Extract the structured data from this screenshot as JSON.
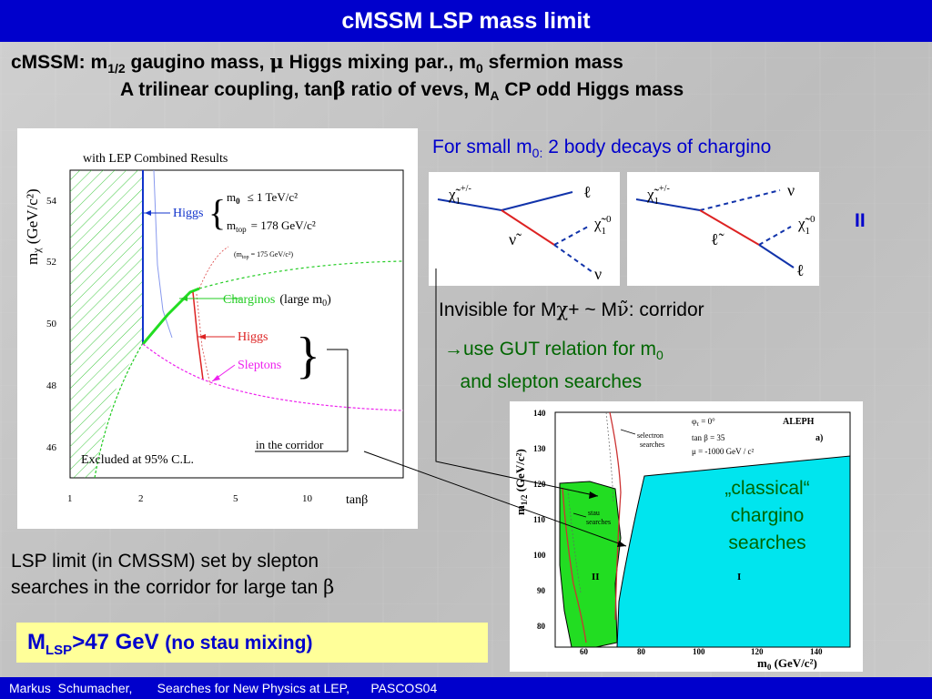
{
  "title": "cMSSM LSP mass limit",
  "definitions": {
    "line1_a": "cMSSM: m",
    "line1_sub": "1/2",
    "line1_b": " gaugino mass,  ",
    "line1_mu": "μ",
    "line1_c": " Higgs mixing par., m",
    "line1_sub0": "0",
    "line1_d": "  sfermion mass",
    "line2_a": "A trilinear coupling, tan",
    "line2_beta": "β",
    "line2_b": "  ratio of vevs, M",
    "line2_sub": "A",
    "line2_c": " CP odd Higgs mass"
  },
  "left_plot": {
    "header": "with LEP Combined Results",
    "ylabel": "m",
    "ylabel_sub": "χ",
    "ylabel_unit": " (GeV/c²)",
    "y_ticks": [
      "54",
      "52",
      "50",
      "48",
      "46"
    ],
    "x_ticks": [
      "1",
      "2",
      "5",
      "10"
    ],
    "xlabel": "tanβ",
    "higgs_label": "Higgs",
    "m0_line": "m",
    "m0_sub": "0",
    "m0_val": "≤ 1 TeV/c²",
    "mtop_line": "m",
    "mtop_sub": "top",
    "mtop_val": "= 178 GeV/c²",
    "mtop175": "(m",
    "mtop175_sub": "top",
    "mtop175_val": "= 175 GeV/c²)",
    "charginos": "Charginos",
    "charginos_note": "(large m",
    "charginos_sub": "0",
    "charginos_end": ")",
    "higgs_red": "Higgs",
    "sleptons": "Sleptons",
    "corridor": "in the corridor",
    "excluded": "Excluded at 95% C.L."
  },
  "small_m_a": "For small m",
  "small_m_sub": "0:",
  "small_m_b": " 2 body decays of chargino",
  "feynman1": {
    "chi": "χ̃",
    "chi_sub": "1",
    "chi_sup": "+/-",
    "l": "ℓ",
    "snu": "ν̃",
    "chi0": "χ̃",
    "chi0_sub": "1",
    "chi0_sup": "0",
    "nu": "ν"
  },
  "feynman2": {
    "chi": "χ̃",
    "chi_sub": "1",
    "chi_sup": "+/-",
    "nu": "ν",
    "slep": "ℓ̃",
    "chi0": "χ̃",
    "chi0_sub": "1",
    "chi0_sup": "0",
    "l": "ℓ"
  },
  "label_II": "II",
  "invisible_a": "Invisible for M",
  "invisible_chi": "χ",
  "invisible_b": "+ ~ M",
  "invisible_snu": "ν̃",
  "invisible_c": ": corridor",
  "use_gut_a": "→use GUT relation for m",
  "use_gut_sub": "0",
  "use_gut_b": "and slepton searches",
  "right_plot": {
    "ylabel": "m",
    "ylabel_sub": "1/2",
    "ylabel_unit": " (GeV/c²)",
    "y_ticks": [
      "140",
      "130",
      "120",
      "110",
      "100",
      "90",
      "80"
    ],
    "x_ticks": [
      "60",
      "80",
      "100",
      "120",
      "140"
    ],
    "xlabel": "m",
    "xlabel_sub": "0",
    "xlabel_unit": " (GeV/c²)",
    "selectron": "selectron",
    "searches": "searches",
    "stau": "stau",
    "stau_searches": "searches",
    "phi": "φ",
    "phi_sub": "τ",
    "phi_val": " = 0°",
    "tanb": "tan β = 35",
    "mu": "μ = -1000 GeV / c²",
    "aleph": "ALEPH",
    "a_label": "a)",
    "region_II": "II",
    "region_I": "I"
  },
  "classical": "„classical“ chargino searches",
  "lsp_limit_line1": "LSP limit (in CMSSM) set by slepton",
  "lsp_limit_line2_a": "searches in the corridor for large tan ",
  "lsp_limit_beta": "β",
  "mlsp_a": "M",
  "mlsp_sub": "LSP",
  "mlsp_b": ">47 GeV ",
  "mlsp_paren": "(no stau mixing)",
  "footer": "Markus  Schumacher,       Searches for New Physics at LEP,      PASCOS04",
  "colors": {
    "title_bar": "#0000cc",
    "green_text": "#006600",
    "highlight": "#ffff99",
    "cyan_region": "#00e5ee",
    "green_region": "#22dd22"
  }
}
